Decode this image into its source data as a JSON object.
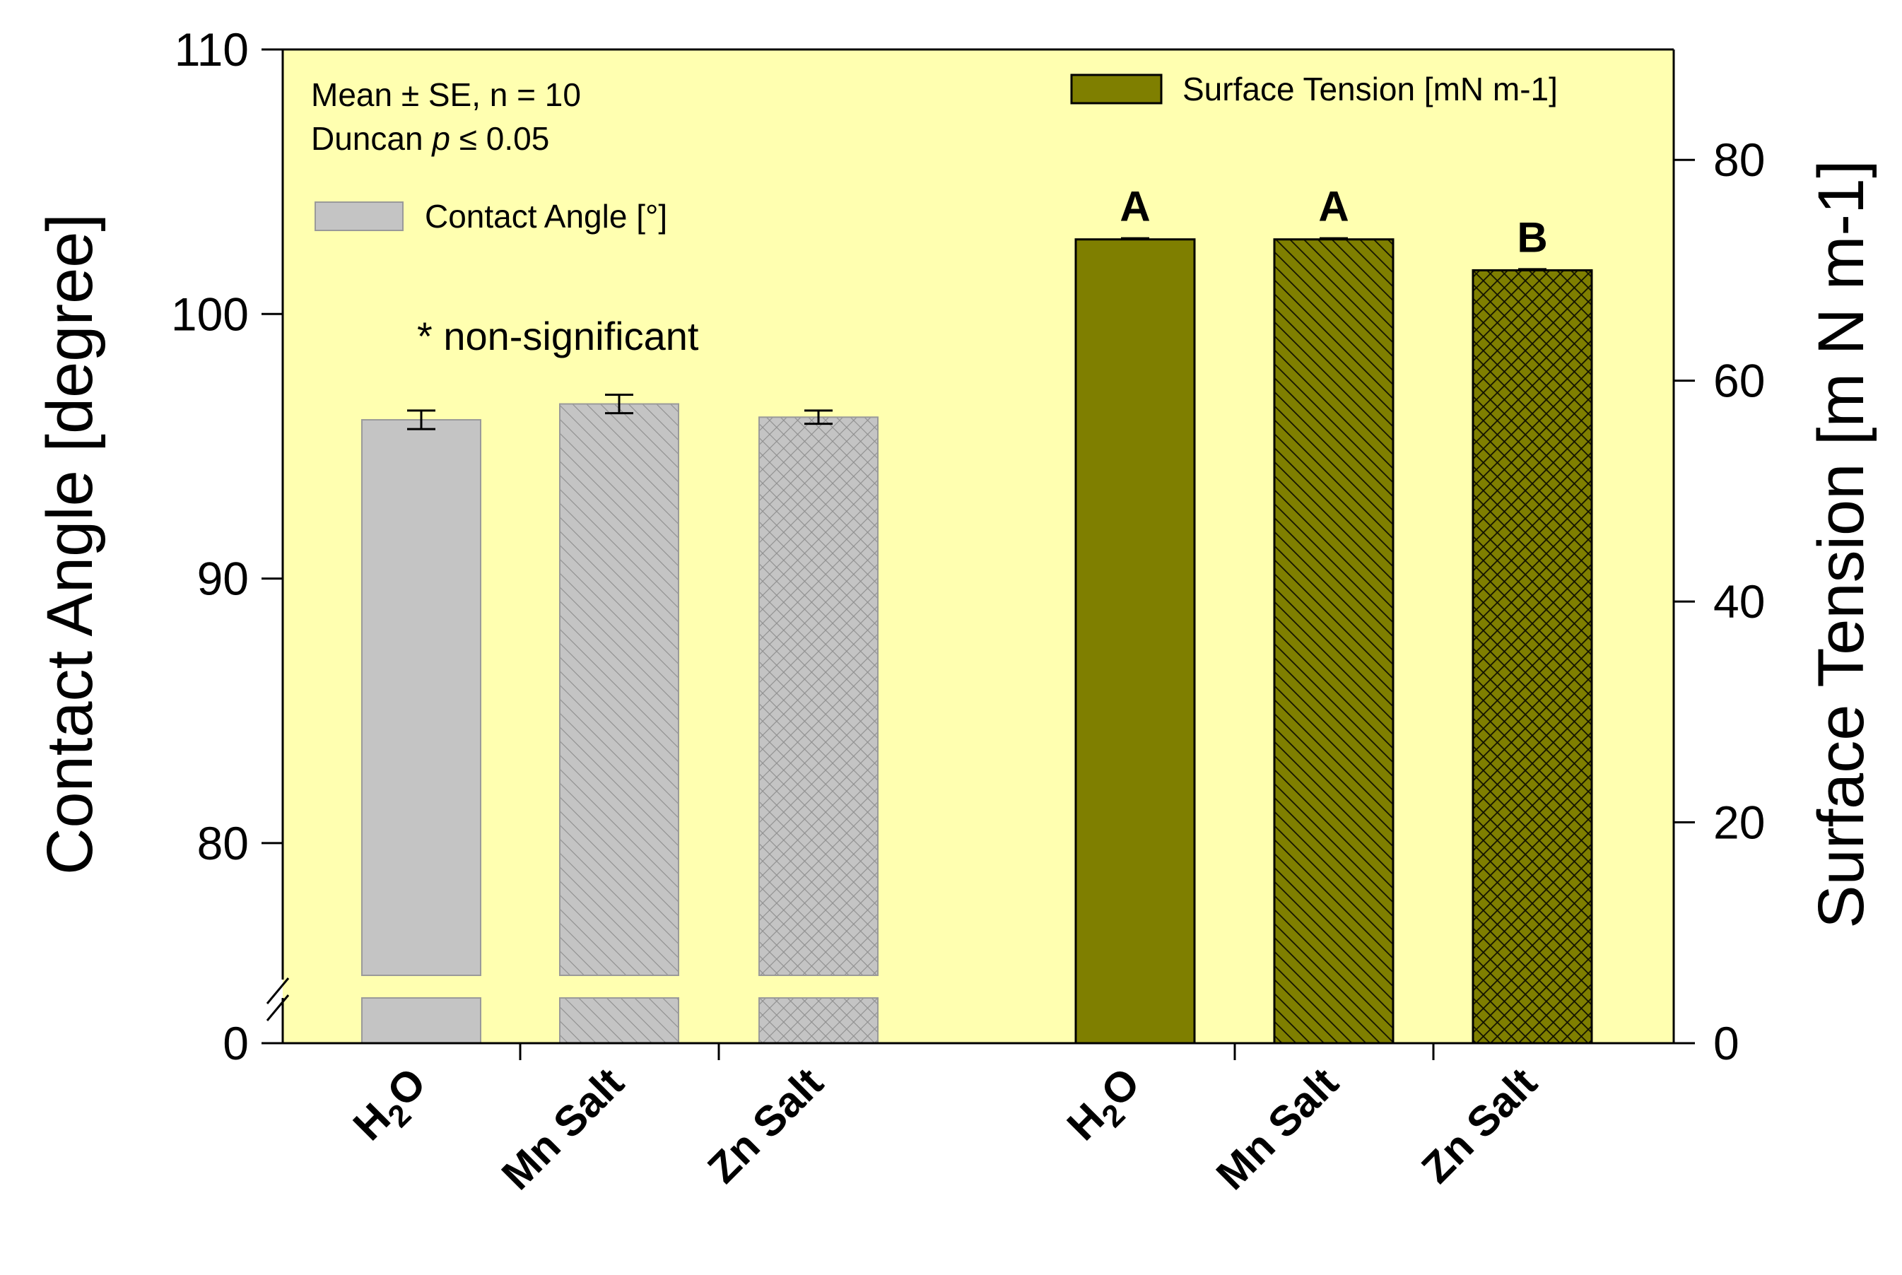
{
  "chart_data": {
    "type": "bar",
    "colors": {
      "plot_bg": "#FFFFB0",
      "contact_fill": "#C4C4C4",
      "contact_edge": "#9A9A9A",
      "tension_fill": "#7F7F00",
      "tension_edge": "#000000",
      "axis": "#000000"
    },
    "left_axis": {
      "label": "Contact Angle [degree]",
      "broken": true,
      "below_break_ticks": [
        0
      ],
      "ylim": [
        75,
        110
      ],
      "ticks": [
        80,
        90,
        100,
        110
      ]
    },
    "right_axis": {
      "label": "Surface Tension [m N m-1]",
      "ylim": [
        0,
        90
      ],
      "ticks": [
        0,
        20,
        40,
        60,
        80
      ]
    },
    "series": [
      {
        "name": "Contact Angle [°]",
        "axis": "left",
        "categories": [
          "H2O",
          "Mn Salt",
          "Zn Salt"
        ],
        "values": [
          96.0,
          96.6,
          96.1
        ],
        "errors": [
          0.35,
          0.35,
          0.25
        ],
        "patterns": [
          "solid",
          "diagonal",
          "crosshatch"
        ],
        "annotation": "* non-significant"
      },
      {
        "name": "Surface Tension [mN m-1]",
        "axis": "right",
        "categories": [
          "H2O",
          "Mn Salt",
          "Zn Salt"
        ],
        "values": [
          72.8,
          72.8,
          70.0
        ],
        "errors": [
          0.1,
          0.1,
          0.1
        ],
        "patterns": [
          "solid",
          "diagonal",
          "crosshatch"
        ],
        "significance": [
          "A",
          "A",
          "B"
        ]
      }
    ],
    "stats_note": {
      "line1": "Mean ± SE, n = 10",
      "line2_prefix": "Duncan ",
      "line2_italic": "p",
      "line2_suffix": " ≤ 0.05"
    },
    "legend": {
      "contact_angle": "Contact Angle [°]",
      "surface_tension": "Surface Tension [mN m-1]"
    },
    "category_labels": [
      {
        "main": "H",
        "sub": "2",
        "tail": "O"
      },
      {
        "main": "Mn Salt",
        "sub": "",
        "tail": ""
      },
      {
        "main": "Zn Salt",
        "sub": "",
        "tail": ""
      },
      {
        "main": "H",
        "sub": "2",
        "tail": "O"
      },
      {
        "main": "Mn Salt",
        "sub": "",
        "tail": ""
      },
      {
        "main": "Zn Salt",
        "sub": "",
        "tail": ""
      }
    ]
  }
}
